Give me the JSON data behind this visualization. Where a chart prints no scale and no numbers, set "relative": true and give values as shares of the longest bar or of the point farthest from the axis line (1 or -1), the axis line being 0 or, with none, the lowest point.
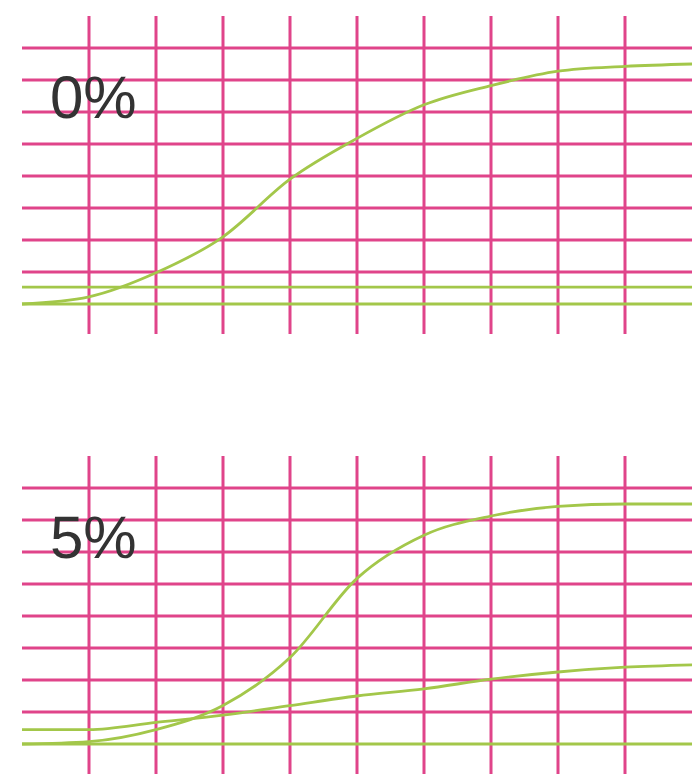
{
  "chart_data": [
    {
      "type": "line",
      "title": "0%",
      "relative": true,
      "grid": true,
      "categories": [
        null,
        null,
        null,
        null,
        null,
        null,
        null,
        null,
        null,
        null,
        null
      ],
      "series": [
        {
          "color": "#a3c74a",
          "values": [
            0,
            0.03,
            0.13,
            0.28,
            0.52,
            0.69,
            0.83,
            0.91,
            0.97,
            0.99,
            1.0
          ]
        },
        {
          "color": "#a3c74a",
          "values": [
            0.07,
            0.07,
            0.07,
            0.07,
            0.07,
            0.07,
            0.07,
            0.07,
            0.07,
            0.07,
            0.07
          ]
        },
        {
          "color": "#a3c74a",
          "values": [
            0,
            0,
            0,
            0,
            0,
            0,
            0,
            0,
            0,
            0,
            0
          ]
        }
      ]
    },
    {
      "type": "line",
      "title": "5%",
      "relative": true,
      "grid": true,
      "categories": [
        null,
        null,
        null,
        null,
        null,
        null,
        null,
        null,
        null,
        null,
        null
      ],
      "series": [
        {
          "color": "#a3c74a",
          "values": [
            0,
            0.01,
            0.06,
            0.16,
            0.36,
            0.69,
            0.87,
            0.95,
            0.99,
            1.0,
            1.0
          ]
        },
        {
          "color": "#a3c74a",
          "values": [
            0.06,
            0.06,
            0.09,
            0.12,
            0.16,
            0.2,
            0.23,
            0.27,
            0.3,
            0.32,
            0.33
          ]
        },
        {
          "color": "#a3c74a",
          "values": [
            0,
            0,
            0,
            0,
            0,
            0,
            0,
            0,
            0,
            0,
            0
          ]
        }
      ]
    }
  ]
}
